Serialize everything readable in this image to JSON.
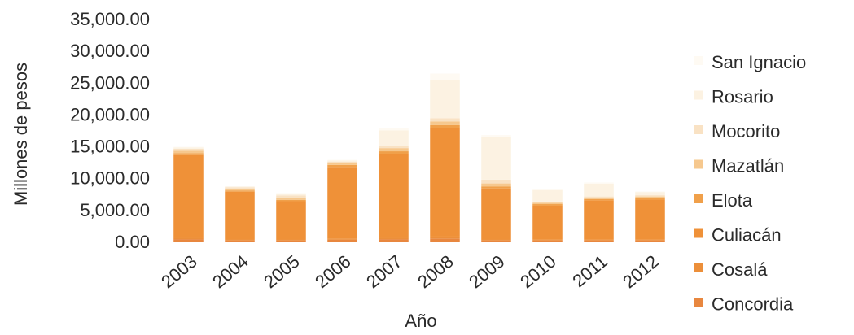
{
  "chart_data": {
    "type": "bar",
    "stacked": true,
    "title": "",
    "xlabel": "Año",
    "ylabel": "Millones de pesos",
    "ylim": [
      0,
      35000
    ],
    "y_ticks": [
      "0.00",
      "5,000.00",
      "10,000.00",
      "15,000.00",
      "20,000.00",
      "25,000.00",
      "30,000.00",
      "35,000.00"
    ],
    "categories": [
      "2003",
      "2004",
      "2005",
      "2006",
      "2007",
      "2008",
      "2009",
      "2010",
      "2011",
      "2012"
    ],
    "grid": false,
    "legend_position": "right",
    "legend_order": [
      "San Ignacio",
      "Rosario",
      "Mocorito",
      "Mazatlán",
      "Elota",
      "Culiacán",
      "Cosalá",
      "Concordia"
    ],
    "series": [
      {
        "name": "Concordia",
        "color": "#e8873f",
        "values": [
          500,
          300,
          300,
          400,
          500,
          600,
          300,
          300,
          300,
          300
        ]
      },
      {
        "name": "Cosalá",
        "color": "#ec8f3a",
        "values": [
          200,
          150,
          150,
          150,
          200,
          300,
          150,
          100,
          100,
          100
        ]
      },
      {
        "name": "Culiacán",
        "color": "#ef9138",
        "values": [
          13000,
          7500,
          6000,
          11300,
          13200,
          17000,
          8000,
          5400,
          6200,
          6300
        ]
      },
      {
        "name": "Elota",
        "color": "#f0a04a",
        "values": [
          300,
          200,
          200,
          300,
          400,
          500,
          300,
          200,
          200,
          200
        ]
      },
      {
        "name": "Mazatlán",
        "color": "#f6c88e",
        "values": [
          400,
          300,
          300,
          300,
          500,
          600,
          500,
          200,
          200,
          300
        ]
      },
      {
        "name": "Mocorito",
        "color": "#f9e2c4",
        "values": [
          300,
          200,
          400,
          200,
          400,
          500,
          600,
          200,
          200,
          200
        ]
      },
      {
        "name": "Rosario",
        "color": "#fcf2e2",
        "values": [
          200,
          100,
          300,
          200,
          2400,
          6000,
          6700,
          1800,
          2000,
          500
        ]
      },
      {
        "name": "San Ignacio",
        "color": "#fefaf3",
        "values": [
          100,
          50,
          100,
          100,
          400,
          1000,
          300,
          200,
          200,
          100
        ]
      }
    ]
  }
}
